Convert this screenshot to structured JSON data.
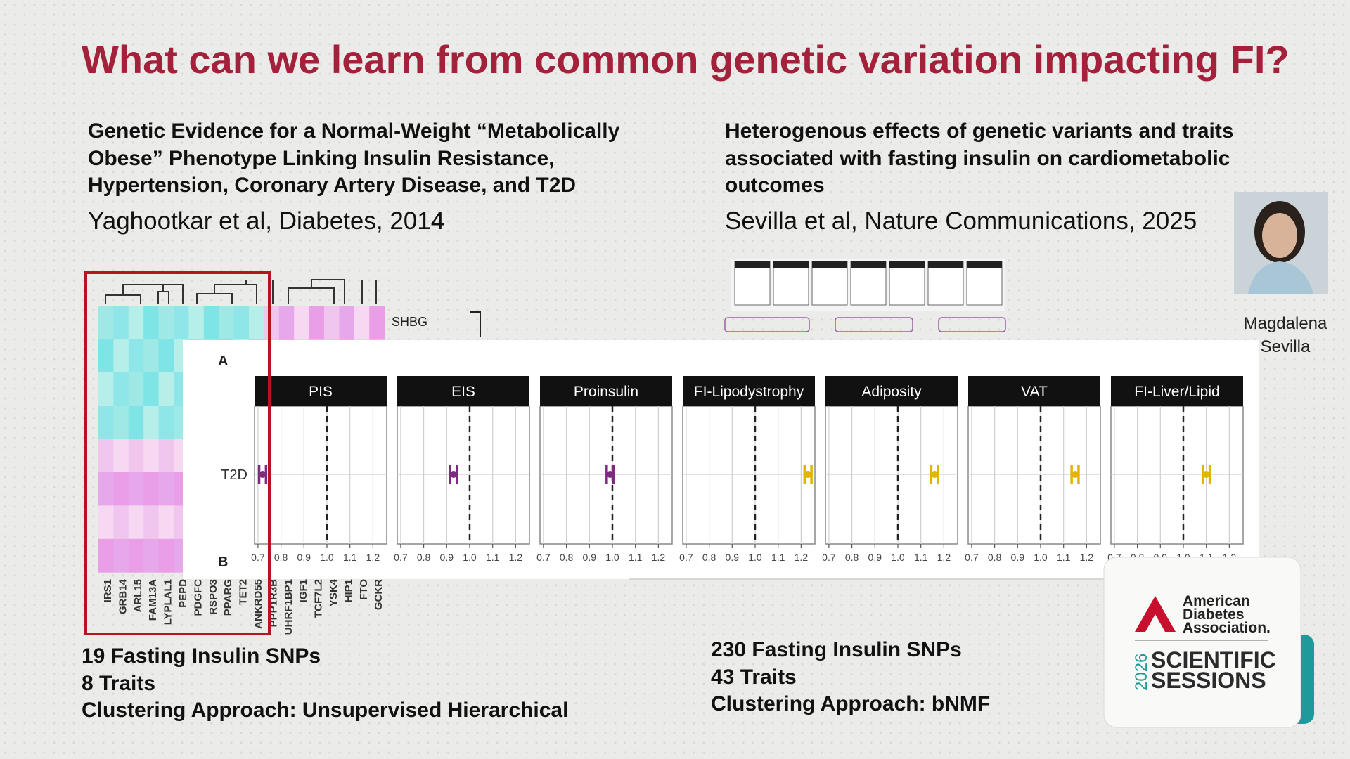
{
  "title": "What can we learn from common genetic variation impacting FI?",
  "studies": [
    {
      "title_lines": [
        "Genetic Evidence for a Normal-Weight “Metabolically",
        "Obese” Phenotype Linking Insulin Resistance,",
        "Hypertension, Coronary Artery Disease, and T2D"
      ],
      "citation": "Yaghootkar et al, Diabetes, 2014",
      "summary": [
        "19 Fasting Insulin SNPs",
        "8 Traits",
        "Clustering Approach: Unsupervised Hierarchical"
      ]
    },
    {
      "title_lines": [
        "Heterogenous effects of genetic variants and traits",
        "associated with fasting insulin on cardiometabolic",
        "outcomes"
      ],
      "citation": "Sevilla et al, Nature Communications, 2025",
      "summary": [
        "230 Fasting Insulin SNPs",
        "43 Traits",
        "Clustering Approach: bNMF"
      ]
    }
  ],
  "heatmap": {
    "row_label": "SHBG",
    "genes": [
      "IRS1",
      "GRB14",
      "ARL15",
      "FAM13A",
      "LYPLAL1",
      "PEPD",
      "PDGFC",
      "RSPO3",
      "PPARG",
      "TET2",
      "ANKRD55",
      "PPP1R3B",
      "UHRF1BP1",
      "IGF1",
      "TCF7L2",
      "YSK4",
      "HIP1",
      "FTO",
      "GCKR"
    ]
  },
  "forest_plot": {
    "panel_labels": [
      "A",
      "B"
    ],
    "y_label": "T2D",
    "xlim": [
      0.685,
      1.26
    ],
    "xticks": [
      0.7,
      0.8,
      0.9,
      {
        "value": 1,
        "label": "1.0"
      },
      1.1,
      1.2
    ],
    "reference": 1,
    "panels": [
      {
        "name": "PIS",
        "estimate": 0.72,
        "error": 0.015,
        "color": "#7d2b80"
      },
      {
        "name": "EIS",
        "estimate": 0.93,
        "error": 0.015,
        "color": "#7d2b80"
      },
      {
        "name": "Proinsulin",
        "estimate": 0.99,
        "error": 0.015,
        "color": "#7d2b80"
      },
      {
        "name": "FI-Lipodystrophy",
        "estimate": 1.23,
        "error": 0.015,
        "color": "#e0b400"
      },
      {
        "name": "Adiposity",
        "estimate": 1.16,
        "error": 0.015,
        "color": "#e0b400"
      },
      {
        "name": "VAT",
        "estimate": 1.15,
        "error": 0.015,
        "color": "#e0b400"
      },
      {
        "name": "FI-Liver/Lipid",
        "estimate": 1.1,
        "error": 0.015,
        "color": "#e0b400"
      }
    ]
  },
  "presenter": {
    "name_lines": [
      "Magdalena",
      "Sevilla"
    ]
  },
  "logo": {
    "org_lines": [
      "American",
      "Diabetes",
      "Association."
    ],
    "year": "2026",
    "event_lines": [
      "SCIENTIFIC",
      "SESSIONS"
    ]
  }
}
